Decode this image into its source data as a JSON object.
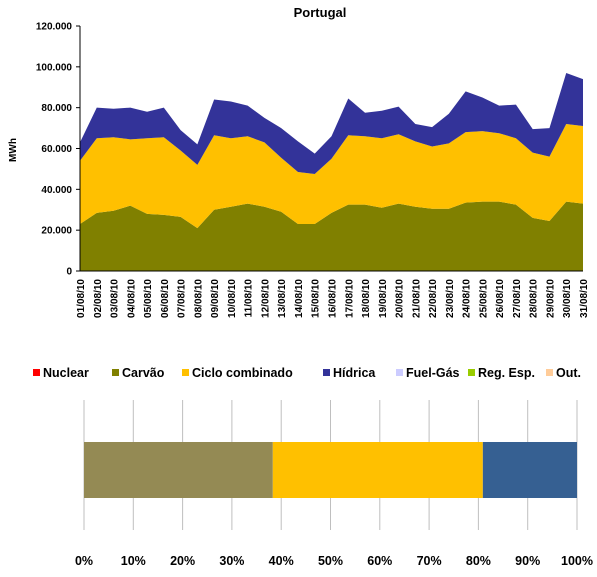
{
  "chart_data": [
    {
      "type": "stacked-area",
      "title": "Portugal",
      "y_label": "MWh",
      "categories": [
        "01/08/10",
        "02/08/10",
        "03/08/10",
        "04/08/10",
        "05/08/10",
        "06/08/10",
        "07/08/10",
        "08/08/10",
        "09/08/10",
        "10/08/10",
        "11/08/10",
        "12/08/10",
        "13/08/10",
        "14/08/10",
        "15/08/10",
        "16/08/10",
        "17/08/10",
        "18/08/10",
        "19/08/10",
        "20/08/10",
        "21/08/10",
        "22/08/10",
        "23/08/10",
        "24/08/10",
        "25/08/10",
        "26/08/10",
        "27/08/10",
        "28/08/10",
        "29/08/10",
        "30/08/10",
        "31/08/10"
      ],
      "ylim": [
        0,
        120000
      ],
      "yticks": [
        0,
        {
          "value": 20000,
          "label": "20.000"
        },
        {
          "value": 40000,
          "label": "40.000"
        },
        {
          "value": 60000,
          "label": "60.000"
        },
        {
          "value": 80000,
          "label": "80.000"
        },
        {
          "value": 100000,
          "label": "100.000"
        },
        {
          "value": 120000,
          "label": "120.000"
        }
      ],
      "series": [
        {
          "name": "Nuclear",
          "color": "#ff0000",
          "values": [
            0,
            0,
            0,
            0,
            0,
            0,
            0,
            0,
            0,
            0,
            0,
            0,
            0,
            0,
            0,
            0,
            0,
            0,
            0,
            0,
            0,
            0,
            0,
            0,
            0,
            0,
            0,
            0,
            0,
            0,
            0
          ]
        },
        {
          "name": "Carvão",
          "color": "#808000",
          "values": [
            23000,
            28500,
            29500,
            32000,
            28000,
            27500,
            26500,
            21000,
            30000,
            31500,
            33000,
            31500,
            29000,
            23000,
            23000,
            28500,
            32500,
            32500,
            31000,
            33000,
            31500,
            30500,
            30500,
            33500,
            34000,
            34000,
            32500,
            26000,
            24500,
            34000,
            33000
          ]
        },
        {
          "name": "Ciclo combinado",
          "color": "#ffc000",
          "values": [
            31000,
            36500,
            36000,
            32500,
            37000,
            38000,
            32500,
            31000,
            36500,
            33500,
            33000,
            31500,
            26500,
            25500,
            24500,
            26500,
            34000,
            33500,
            34000,
            34000,
            32000,
            30500,
            32000,
            34500,
            34500,
            33500,
            32500,
            32000,
            31500,
            38000,
            38000
          ]
        },
        {
          "name": "Hídrica",
          "color": "#333399",
          "values": [
            9000,
            15000,
            14000,
            15500,
            13000,
            14500,
            10000,
            10000,
            17500,
            18000,
            15000,
            12000,
            14500,
            15000,
            10000,
            11000,
            18000,
            11500,
            13500,
            13500,
            8500,
            9500,
            14500,
            20000,
            16500,
            13500,
            16500,
            11500,
            14000,
            25000,
            23000
          ]
        },
        {
          "name": "Fuel-Gás",
          "color": "#ccccff",
          "values": [
            0,
            0,
            0,
            0,
            0,
            0,
            0,
            0,
            0,
            0,
            0,
            0,
            0,
            0,
            0,
            0,
            0,
            0,
            0,
            0,
            0,
            0,
            0,
            0,
            0,
            0,
            0,
            0,
            0,
            0,
            0
          ]
        },
        {
          "name": "Reg. Esp.",
          "color": "#99cc00",
          "values": [
            0,
            0,
            0,
            0,
            0,
            0,
            0,
            0,
            0,
            0,
            0,
            0,
            0,
            0,
            0,
            0,
            0,
            0,
            0,
            0,
            0,
            0,
            0,
            0,
            0,
            0,
            0,
            0,
            0,
            0,
            0
          ]
        },
        {
          "name": "Out.",
          "color": "#ffcc99",
          "values": [
            0,
            0,
            0,
            0,
            0,
            0,
            0,
            0,
            0,
            0,
            0,
            0,
            0,
            0,
            0,
            0,
            0,
            0,
            0,
            0,
            0,
            0,
            0,
            0,
            0,
            0,
            0,
            0,
            0,
            0,
            0
          ]
        }
      ]
    },
    {
      "type": "stacked-bar-horizontal",
      "xlim": [
        0,
        100
      ],
      "grid": true,
      "xticks": [
        {
          "value": 0,
          "label": "0%"
        },
        {
          "value": 10,
          "label": "10%"
        },
        {
          "value": 20,
          "label": "20%"
        },
        {
          "value": 30,
          "label": "30%"
        },
        {
          "value": 40,
          "label": "40%"
        },
        {
          "value": 50,
          "label": "50%"
        },
        {
          "value": 60,
          "label": "60%"
        },
        {
          "value": 70,
          "label": "70%"
        },
        {
          "value": 80,
          "label": "80%"
        },
        {
          "value": 90,
          "label": "90%"
        },
        {
          "value": 100,
          "label": "100%"
        }
      ],
      "series": [
        {
          "color": "#948a54",
          "values": [
            38.3
          ]
        },
        {
          "color": "#ffc000",
          "values": [
            42.6
          ]
        },
        {
          "color": "#366092",
          "values": [
            19.1
          ]
        }
      ]
    }
  ]
}
